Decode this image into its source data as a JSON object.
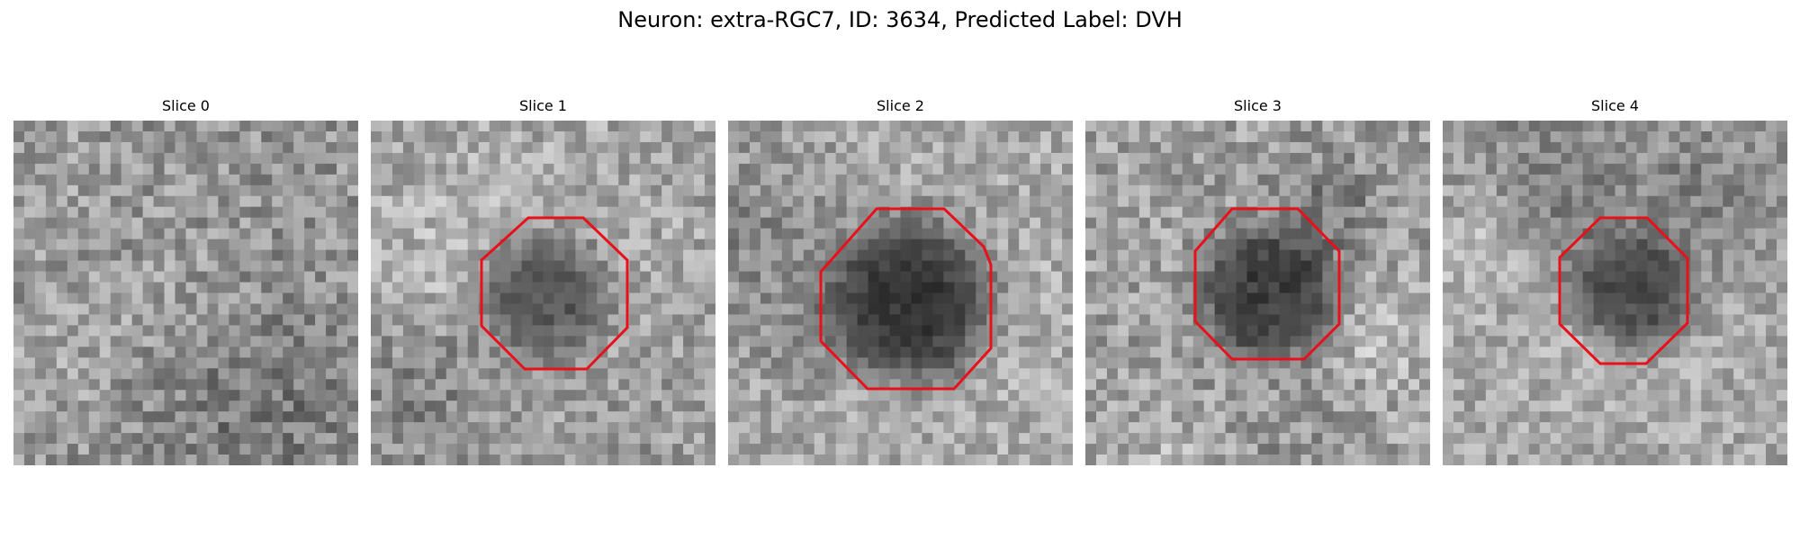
{
  "figure": {
    "title": "Neuron: extra-RGC7, ID: 3634, Predicted Label: DVH"
  },
  "panels": [
    {
      "title": "Slice 0",
      "has_outline": false,
      "brightness": 148,
      "contrast": 42,
      "blob_strength": 0.0,
      "seed": 11
    },
    {
      "title": "Slice 1",
      "has_outline": true,
      "brightness": 165,
      "contrast": 40,
      "blob_strength": 0.55,
      "seed": 23,
      "blob_center": [
        0.5,
        0.5
      ],
      "blob_radius": 0.19
    },
    {
      "title": "Slice 2",
      "has_outline": true,
      "brightness": 172,
      "contrast": 38,
      "blob_strength": 0.75,
      "seed": 37,
      "blob_center": [
        0.53,
        0.52
      ],
      "blob_radius": 0.24
    },
    {
      "title": "Slice 3",
      "has_outline": true,
      "brightness": 160,
      "contrast": 42,
      "blob_strength": 0.68,
      "seed": 41,
      "blob_center": [
        0.53,
        0.5
      ],
      "blob_radius": 0.2
    },
    {
      "title": "Slice 4",
      "has_outline": true,
      "brightness": 168,
      "contrast": 36,
      "blob_strength": 0.6,
      "seed": 53,
      "blob_center": [
        0.55,
        0.5
      ],
      "blob_radius": 0.18
    }
  ],
  "colors": {
    "outline": "#e8101a"
  }
}
